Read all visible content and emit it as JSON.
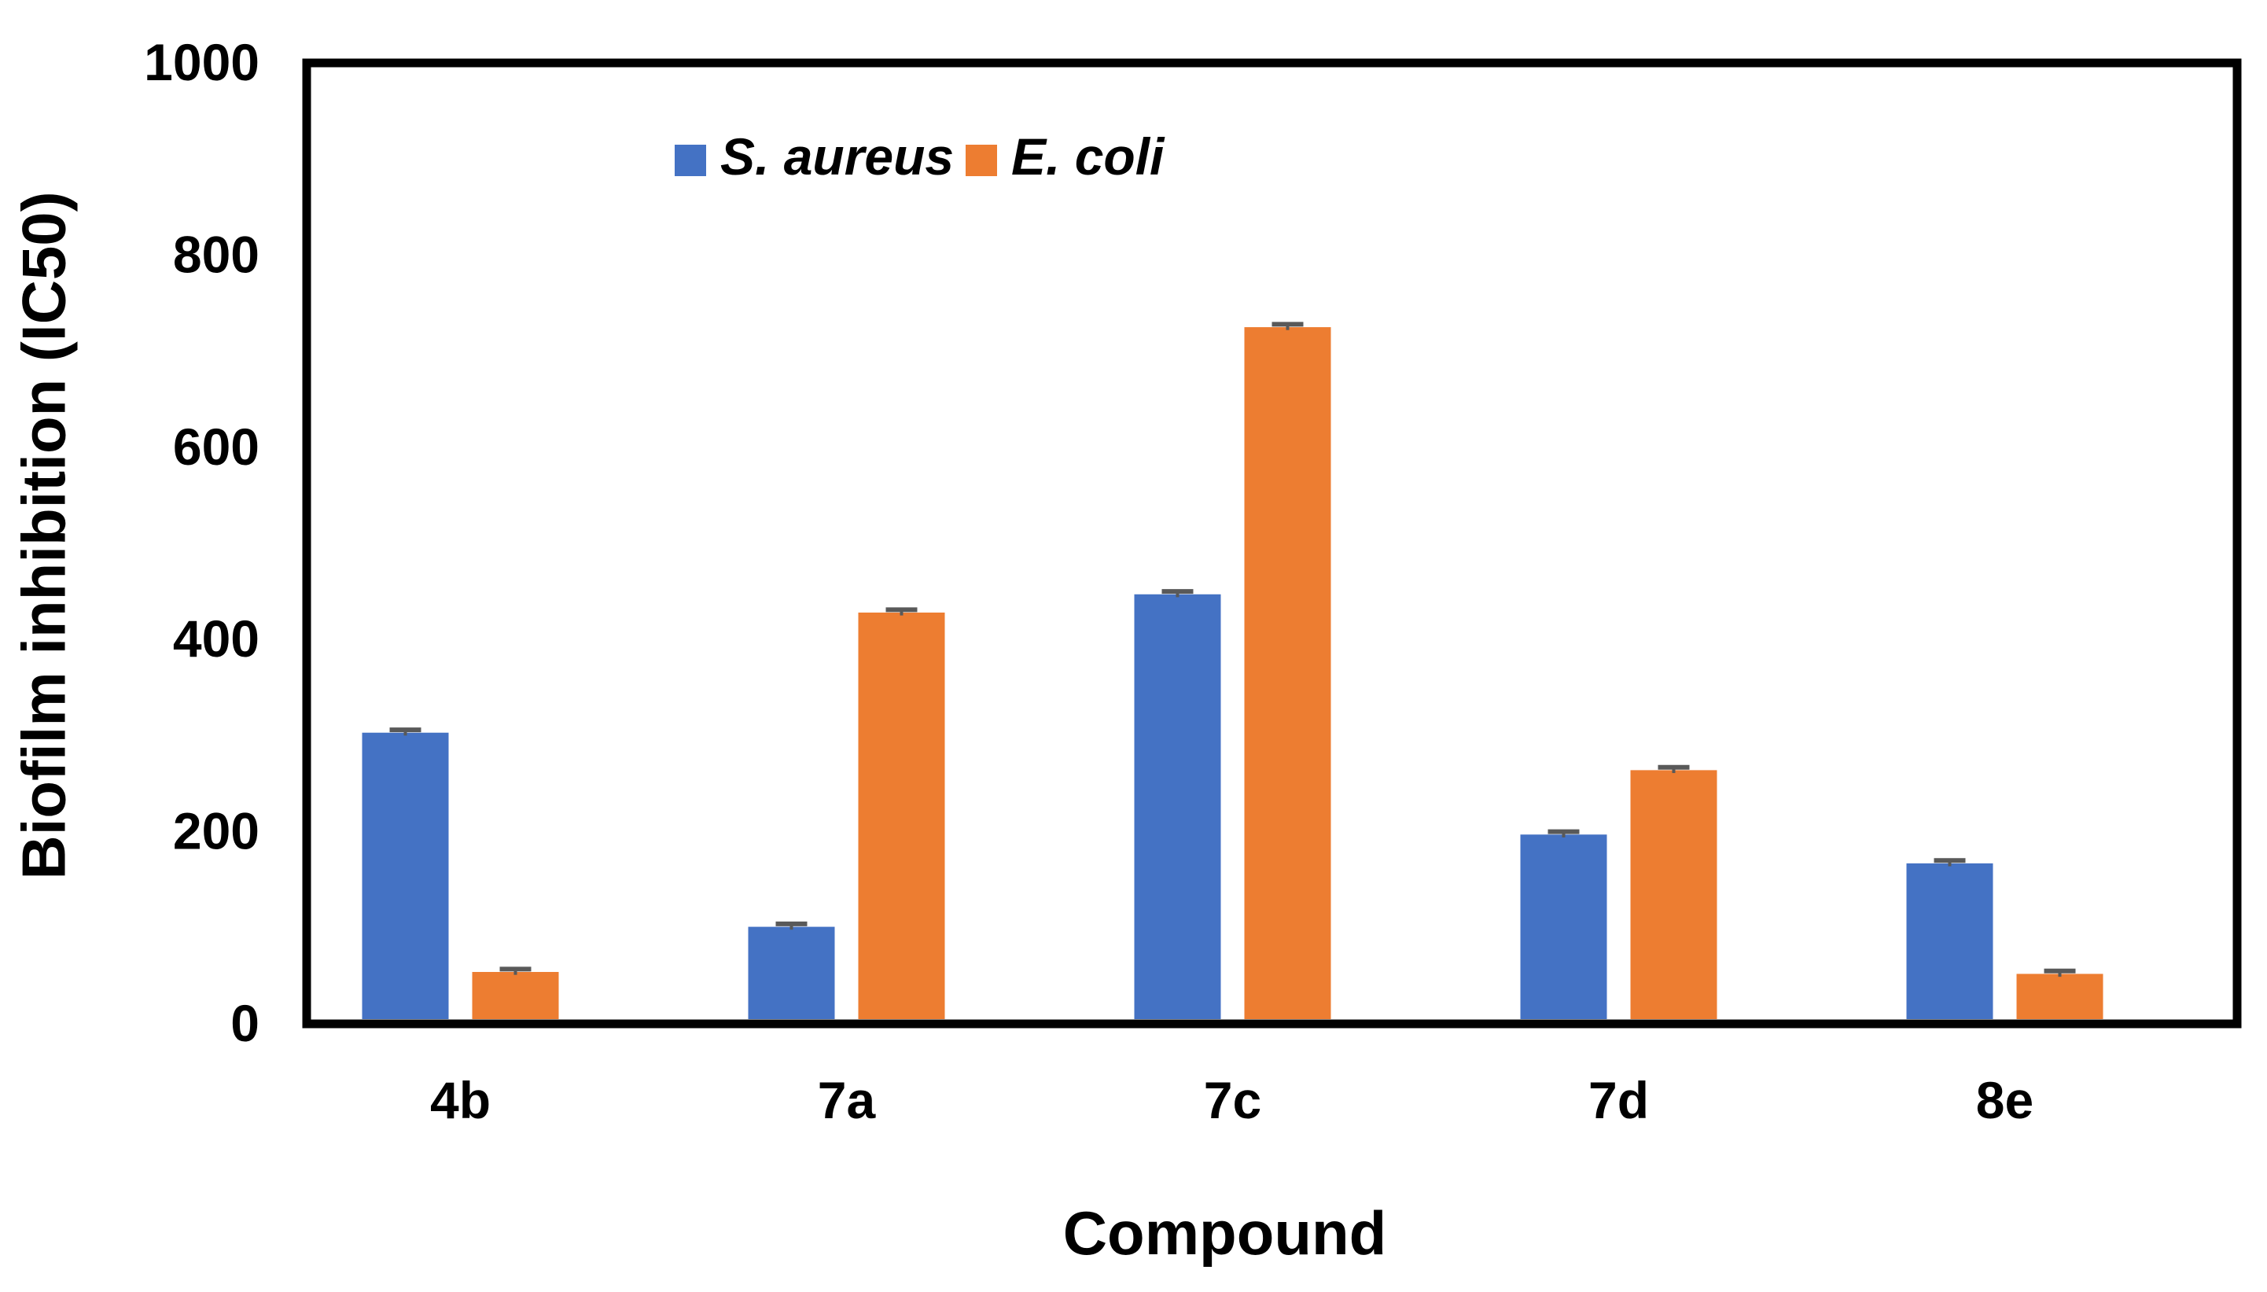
{
  "chart_data": {
    "type": "bar",
    "title": "",
    "xlabel": "Compound",
    "ylabel": "Biofilm inhibition (IC50)",
    "categories": [
      "4b",
      "7a",
      "7c",
      "7d",
      "8e"
    ],
    "series": [
      {
        "name": "S. aureus",
        "color": "#4472C4",
        "values": [
          303,
          101,
          447,
          197,
          167
        ],
        "errors": [
          3,
          3,
          3,
          3,
          3
        ]
      },
      {
        "name": "E. coli",
        "color": "#ED7D31",
        "values": [
          54,
          428,
          725,
          264,
          52
        ],
        "errors": [
          3,
          3,
          3,
          3,
          3
        ]
      }
    ],
    "ylim": [
      0,
      1000
    ],
    "yticks": [
      "0",
      "200",
      "400",
      "600",
      "800",
      "1000"
    ],
    "grid": false,
    "legend_position": "top-left-inside",
    "error_bar_color": "#595959"
  }
}
